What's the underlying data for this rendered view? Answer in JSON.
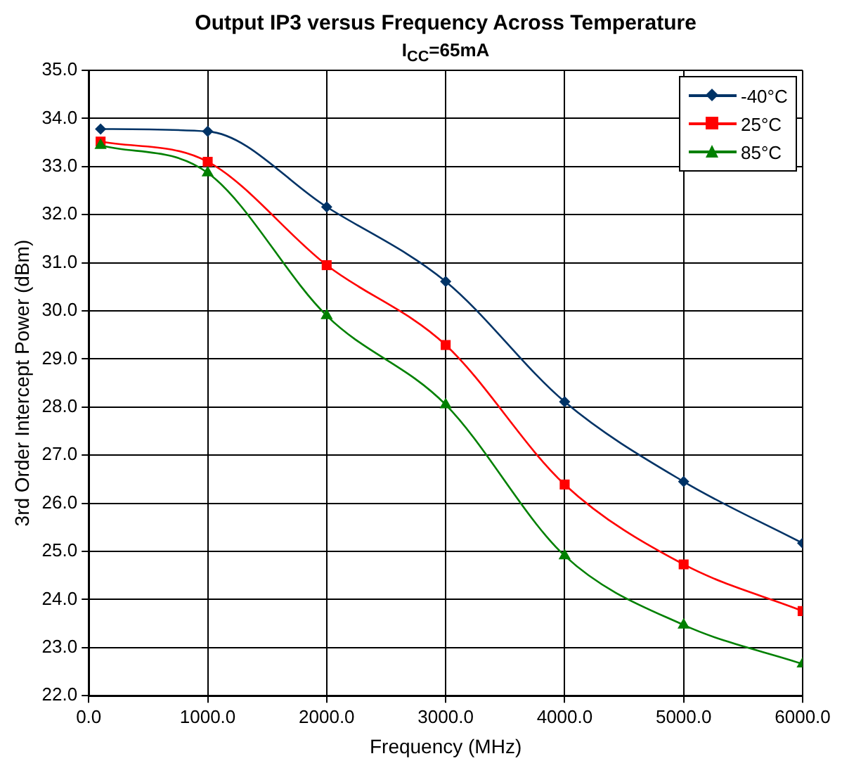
{
  "chart_data": {
    "type": "line",
    "title": "Output IP3 versus Frequency Across Temperature",
    "subtitle": "I$_{CC}$=65mA",
    "xlabel": "Frequency (MHz)",
    "ylabel": "3rd Order Intercept Power (dBm)",
    "x": [
      100,
      1000,
      2000,
      3000,
      4000,
      5000,
      6000
    ],
    "series": [
      {
        "name": "-40°C",
        "color": "#003366",
        "marker": "diamond",
        "values": [
          33.78,
          33.73,
          32.16,
          30.61,
          28.11,
          26.45,
          25.17
        ]
      },
      {
        "name": "25°C",
        "color": "#ff0000",
        "marker": "square",
        "values": [
          33.52,
          33.1,
          30.95,
          29.29,
          26.39,
          24.73,
          23.76
        ]
      },
      {
        "name": "85°C",
        "color": "#008000",
        "marker": "triangle",
        "values": [
          33.44,
          32.87,
          29.9,
          28.05,
          24.91,
          23.47,
          22.66
        ]
      }
    ],
    "xlim": [
      0,
      6000
    ],
    "xticks": [
      {
        "value": 0,
        "label": "0.0"
      },
      {
        "value": 1000,
        "label": "1000.0"
      },
      {
        "value": 2000,
        "label": "2000.0"
      },
      {
        "value": 3000,
        "label": "3000.0"
      },
      {
        "value": 4000,
        "label": "4000.0"
      },
      {
        "value": 5000,
        "label": "5000.0"
      },
      {
        "value": 6000,
        "label": "6000.0"
      }
    ],
    "ylim": [
      22,
      35
    ],
    "yticks": [
      {
        "value": 22,
        "label": "22.0"
      },
      {
        "value": 23,
        "label": "23.0"
      },
      {
        "value": 24,
        "label": "24.0"
      },
      {
        "value": 25,
        "label": "25.0"
      },
      {
        "value": 26,
        "label": "26.0"
      },
      {
        "value": 27,
        "label": "27.0"
      },
      {
        "value": 28,
        "label": "28.0"
      },
      {
        "value": 29,
        "label": "29.0"
      },
      {
        "value": 30,
        "label": "30.0"
      },
      {
        "value": 31,
        "label": "31.0"
      },
      {
        "value": 32,
        "label": "32.0"
      },
      {
        "value": 33,
        "label": "33.0"
      },
      {
        "value": 34,
        "label": "34.0"
      },
      {
        "value": 35,
        "label": "35.0"
      }
    ],
    "grid": true,
    "legend": "top right",
    "line_style": "solid"
  }
}
